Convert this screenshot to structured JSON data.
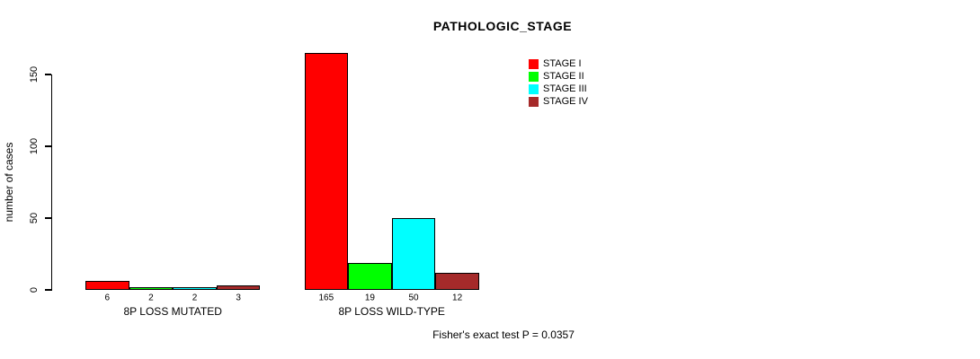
{
  "chart_data": {
    "type": "bar",
    "title": "PATHOLOGIC_STAGE",
    "xlabel": "",
    "ylabel": "number of cases",
    "categories": [
      "8P LOSS MUTATED",
      "8P LOSS WILD-TYPE"
    ],
    "series": [
      {
        "name": "STAGE I",
        "color": "#ff0000",
        "values": [
          6,
          165
        ]
      },
      {
        "name": "STAGE II",
        "color": "#00ff00",
        "values": [
          2,
          19
        ]
      },
      {
        "name": "STAGE III",
        "color": "#00ffff",
        "values": [
          2,
          50
        ]
      },
      {
        "name": "STAGE IV",
        "color": "#a52a2a",
        "values": [
          3,
          12
        ]
      }
    ],
    "ylim": [
      0,
      150
    ],
    "yticks": [
      0,
      50,
      100,
      150
    ],
    "bar_value_labels": true,
    "grid": false,
    "legend_position": "top-right",
    "annotation": "Fisher's exact test P = 0.0357"
  }
}
